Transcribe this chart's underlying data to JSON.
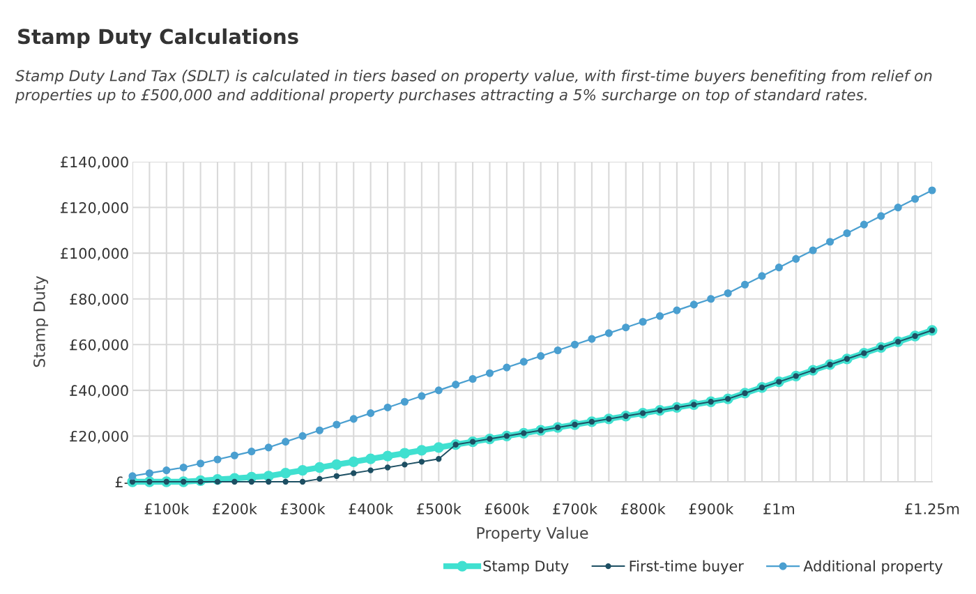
{
  "chart_data": {
    "type": "line",
    "title": "Stamp Duty Calculations",
    "subtitle": "Stamp Duty Land Tax (SDLT) is calculated in tiers based on property value, with first-time buyers benefiting from relief on properties up to £500,000 and additional property purchases attracting a 5% surcharge on top of standard rates.",
    "xlabel": "Property Value",
    "ylabel": "Stamp Duty",
    "categories": [
      null,
      null,
      "£100k",
      null,
      null,
      null,
      "£200k",
      null,
      null,
      null,
      "£300k",
      null,
      null,
      null,
      "£400k",
      null,
      null,
      null,
      "£500k",
      null,
      null,
      null,
      "£600k",
      null,
      null,
      null,
      "£700k",
      null,
      null,
      null,
      "£800k",
      null,
      null,
      null,
      "£900k",
      null,
      null,
      null,
      "£1m",
      null,
      null,
      null,
      null,
      null,
      null,
      null,
      null,
      "£1.25m"
    ],
    "series": [
      {
        "name": "Stamp Duty",
        "color": "#40e0d0",
        "values": [
          0,
          0,
          0,
          0,
          500,
          1000,
          1500,
          2000,
          2500,
          3750,
          5000,
          6250,
          7500,
          8750,
          10000,
          11250,
          12500,
          13750,
          15000,
          16250,
          17500,
          18750,
          20000,
          21250,
          22500,
          23750,
          25000,
          26250,
          27500,
          28750,
          30000,
          31250,
          32500,
          33750,
          35000,
          36250,
          38750,
          41250,
          43750,
          46250,
          48750,
          51250,
          53750,
          56250,
          58750,
          61250,
          63750,
          66250
        ]
      },
      {
        "name": "First-time buyer",
        "color": "#1d4f63",
        "values": [
          0,
          0,
          0,
          0,
          0,
          0,
          0,
          0,
          0,
          0,
          0,
          1250,
          2500,
          3750,
          5000,
          6250,
          7500,
          8750,
          10000,
          16250,
          17500,
          18750,
          20000,
          21250,
          22500,
          23750,
          25000,
          26250,
          27500,
          28750,
          30000,
          31250,
          32500,
          33750,
          35000,
          36250,
          38750,
          41250,
          43750,
          46250,
          48750,
          51250,
          53750,
          56250,
          58750,
          61250,
          63750,
          66250
        ]
      },
      {
        "name": "Additional property",
        "color": "#4a9fd0",
        "values": [
          2500,
          3750,
          5000,
          6250,
          8000,
          9750,
          11500,
          13250,
          15000,
          17500,
          20000,
          22500,
          25000,
          27500,
          30000,
          32500,
          35000,
          37500,
          40000,
          42500,
          45000,
          47500,
          50000,
          52500,
          55000,
          57500,
          60000,
          62500,
          65000,
          67500,
          70000,
          72500,
          75000,
          77500,
          80000,
          82500,
          86250,
          90000,
          93750,
          97500,
          101250,
          105000,
          108750,
          112500,
          116250,
          120000,
          123750,
          127500
        ]
      }
    ],
    "ylim": [
      0,
      140000
    ],
    "yticks": [
      {
        "value": 0,
        "label": "£-"
      },
      {
        "value": 20000,
        "label": "£20,000"
      },
      {
        "value": 40000,
        "label": "£40,000"
      },
      {
        "value": 60000,
        "label": "£60,000"
      },
      {
        "value": 80000,
        "label": "£80,000"
      },
      {
        "value": 100000,
        "label": "£100,000"
      },
      {
        "value": 120000,
        "label": "£120,000"
      },
      {
        "value": 140000,
        "label": "£140,000"
      }
    ],
    "grid": true,
    "legend": "bottom right",
    "marker": "circle",
    "line_style": "solid"
  }
}
